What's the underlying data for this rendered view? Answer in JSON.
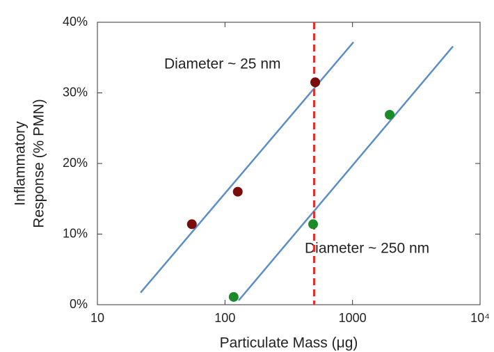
{
  "chart_data": {
    "type": "scatter",
    "xlabel": "Particulate Mass (μg)",
    "ylabel": [
      "Inflammatory",
      "Response (% PMN)"
    ],
    "annotations": [
      "Diameter ~ 25 nm",
      "Diameter ~ 250 nm"
    ],
    "xscale": "log",
    "xlim": [
      10,
      10000
    ],
    "xticks": [
      10,
      100,
      1000,
      {
        "value": 10000,
        "label": "10⁴"
      }
    ],
    "ylim": [
      0,
      40
    ],
    "yticks": [
      {
        "value": 0,
        "label": "0%"
      },
      {
        "value": 10,
        "label": "10%"
      },
      {
        "value": 20,
        "label": "20%"
      },
      {
        "value": 30,
        "label": "30%"
      },
      {
        "value": 40,
        "label": "40%"
      }
    ],
    "series": [
      {
        "color": "#7b0c0c",
        "x": [
          55,
          126,
          510
        ],
        "values": [
          11.4,
          16.0,
          31.5
        ]
      },
      {
        "color": "#1d8a2a",
        "x": [
          117,
          491,
          1955
        ],
        "values": [
          1.1,
          11.4,
          26.9
        ]
      }
    ],
    "fit_lines": [
      {
        "color": "#5b8ec4",
        "x": [
          21.8,
          1018
        ],
        "values": [
          1.7,
          37.2
        ]
      },
      {
        "color": "#5b8ec4",
        "x": [
          128,
          6135
        ],
        "values": [
          0.6,
          36.6
        ]
      }
    ],
    "vline": {
      "x": 500,
      "color": "#ee2a2a"
    }
  }
}
